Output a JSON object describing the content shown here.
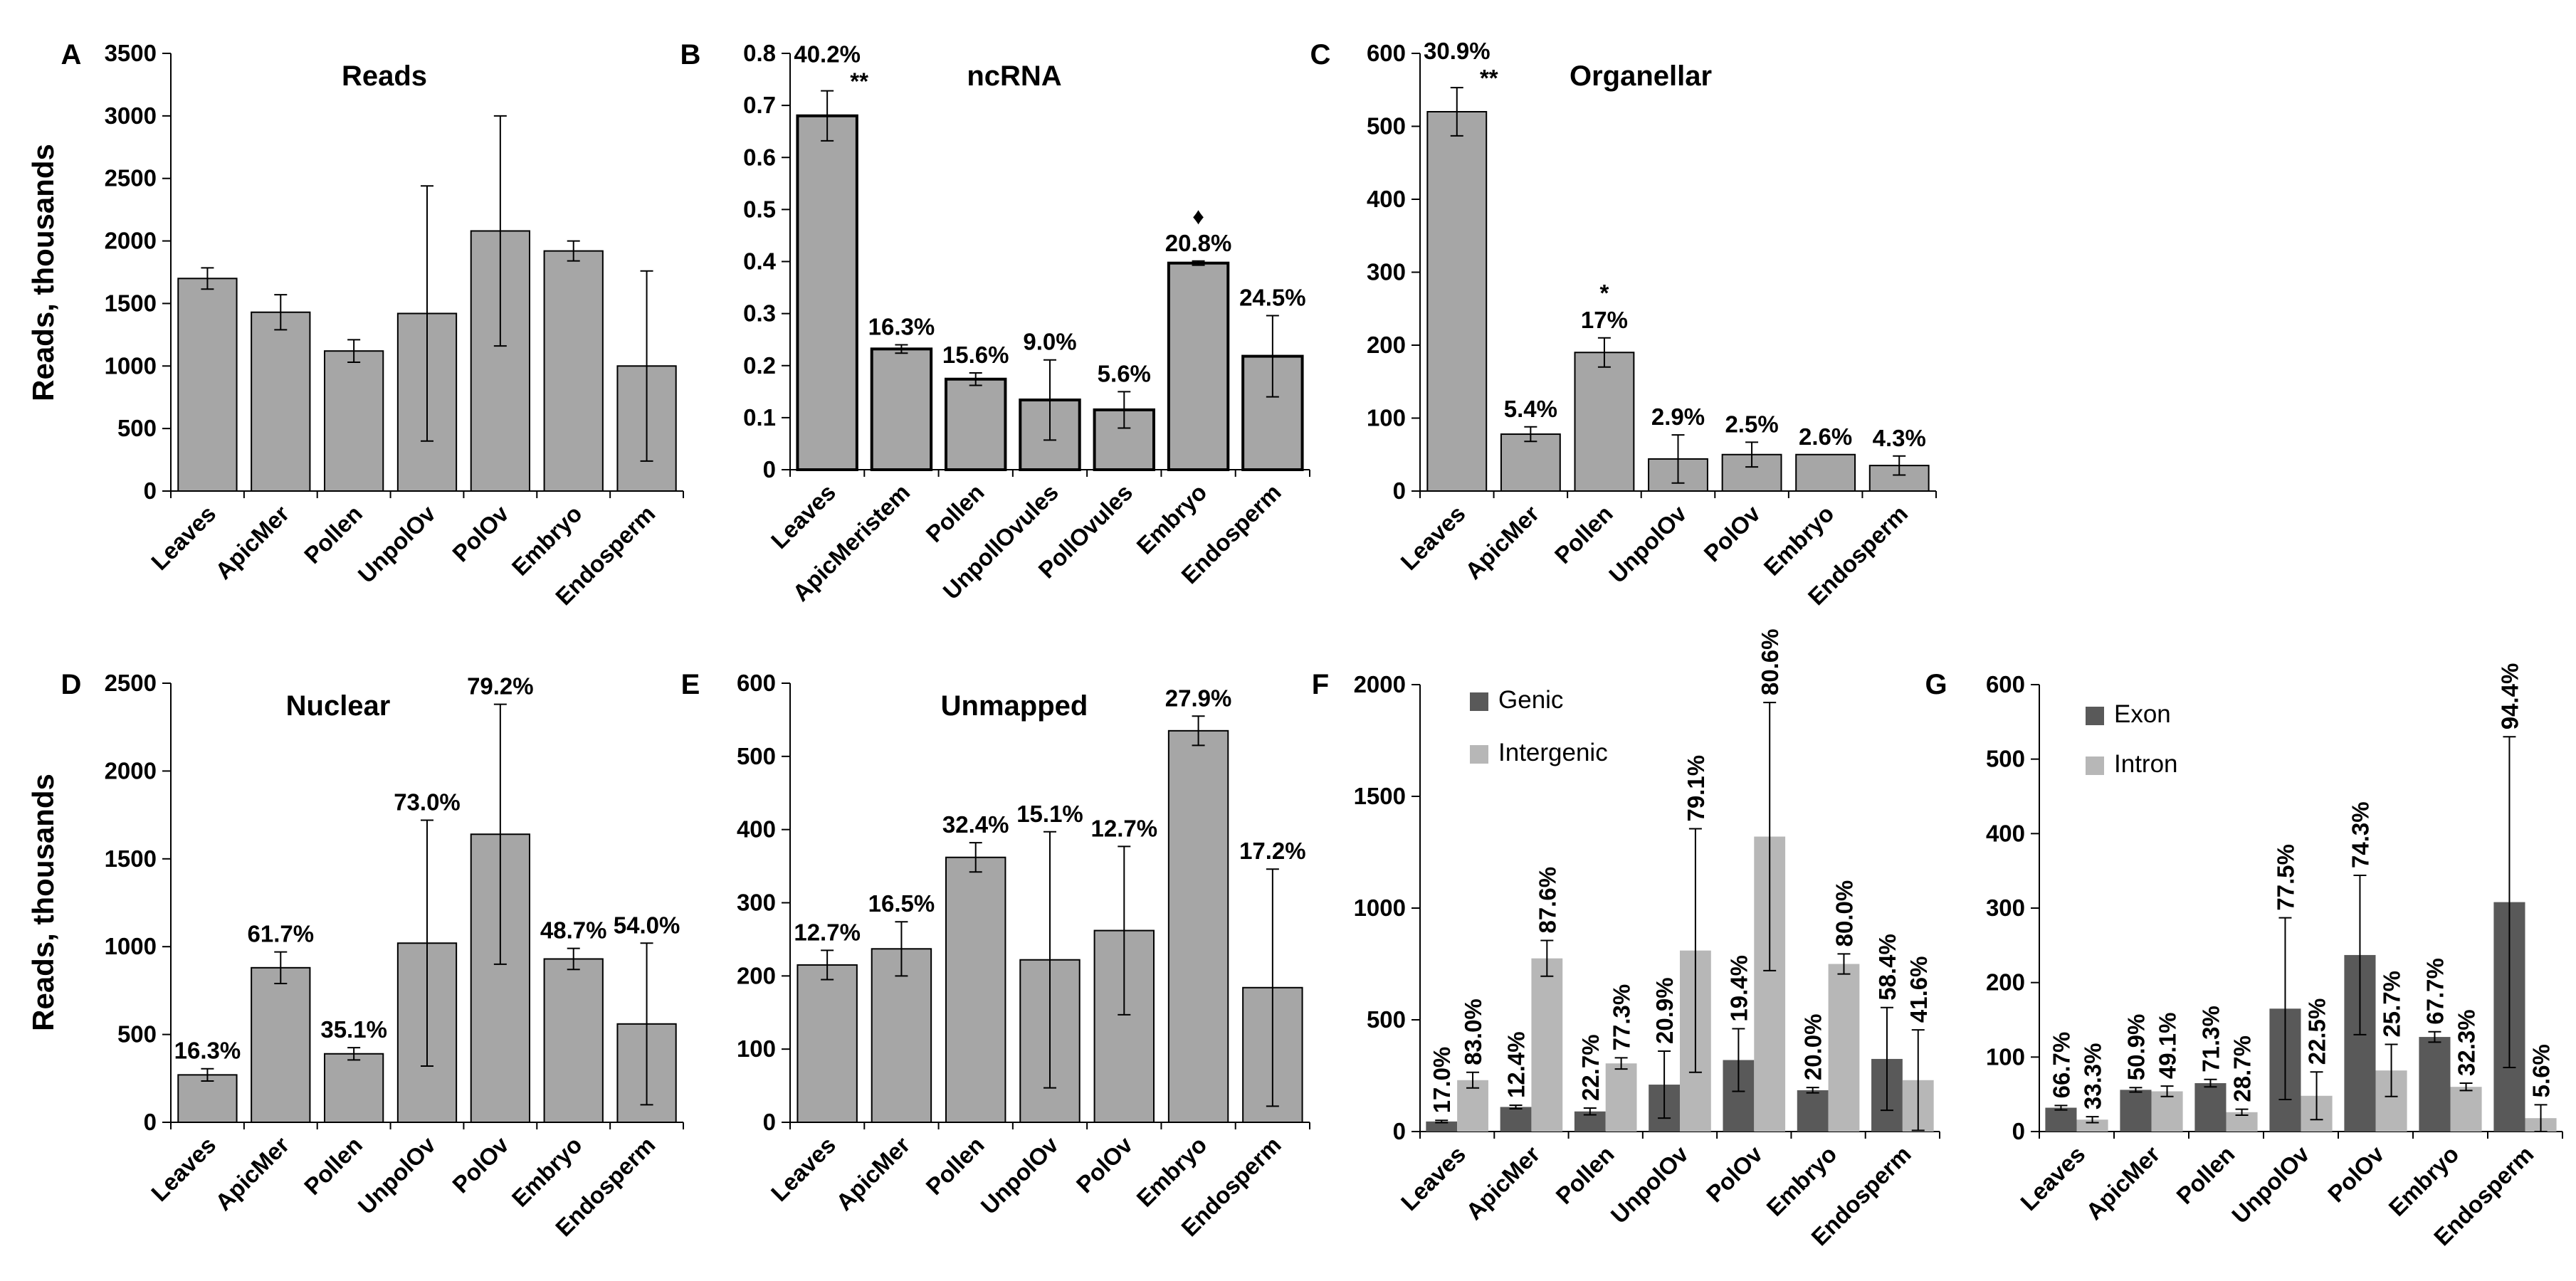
{
  "chart_data": [
    {
      "id": "A",
      "type": "bar",
      "title": "Reads",
      "panel_label": "A",
      "ylabel": "Reads, thousands",
      "categories": [
        "Leaves",
        "ApicMer",
        "Pollen",
        "UnpolOv",
        "PolOv",
        "Embryo",
        "Endosperm"
      ],
      "ylim": [
        0,
        3500
      ],
      "yticks": [
        0,
        500,
        1000,
        1500,
        2000,
        2500,
        3000,
        3500
      ],
      "series": [
        {
          "values": [
            1700,
            1430,
            1120,
            1420,
            2080,
            1920,
            1000
          ],
          "errors": [
            85,
            140,
            90,
            1020,
            920,
            80,
            760
          ],
          "color": "#a6a6a6"
        }
      ],
      "data_labels": [],
      "marks": []
    },
    {
      "id": "B",
      "type": "bar",
      "title": "ncRNA",
      "panel_label": "B",
      "ylabel": "",
      "categories": [
        "Leaves",
        "ApicMeristem",
        "Pollen",
        "UnpollOvules",
        "PollOvules",
        "Embryo",
        "Endosperm"
      ],
      "ylim": [
        0,
        0.8
      ],
      "yticks": [
        "0",
        "0.1",
        "0.2",
        "0.3",
        "0.4",
        "0.5",
        "0.6",
        "0.7",
        "0.8"
      ],
      "series": [
        {
          "values": [
            0.68,
            0.232,
            0.174,
            0.134,
            0.115,
            0.397,
            0.218
          ],
          "errors": [
            0.048,
            0.008,
            0.012,
            0.077,
            0.035,
            0.004,
            0.078
          ],
          "color": "#a6a6a6"
        }
      ],
      "data_labels": [
        "40.2%",
        "16.3%",
        "15.6%",
        "9.0%",
        "5.6%",
        "20.8%",
        "24.5%"
      ],
      "marks": [
        "**",
        "",
        "",
        "",
        "",
        "♦",
        ""
      ]
    },
    {
      "id": "C",
      "type": "bar",
      "title": "Organellar",
      "panel_label": "C",
      "ylabel": "",
      "categories": [
        "Leaves",
        "ApicMer",
        "Pollen",
        "UnpolOv",
        "PolOv",
        "Embryo",
        "Endosperm"
      ],
      "ylim": [
        0,
        600
      ],
      "yticks": [
        0,
        100,
        200,
        300,
        400,
        500,
        600
      ],
      "series": [
        {
          "values": [
            520,
            78,
            190,
            44,
            50,
            50,
            35
          ],
          "errors": [
            33,
            10,
            20,
            33,
            17,
            0,
            13
          ],
          "color": "#a6a6a6"
        }
      ],
      "data_labels": [
        "30.9%",
        "5.4%",
        "17%",
        "2.9%",
        "2.5%",
        "2.6%",
        "4.3%"
      ],
      "marks": [
        "**",
        "",
        "*",
        "",
        "",
        "",
        ""
      ]
    },
    {
      "id": "D",
      "type": "bar",
      "title": "Nuclear",
      "panel_label": "D",
      "ylabel": "Reads, thousands",
      "categories": [
        "Leaves",
        "ApicMer",
        "Pollen",
        "UnpolOv",
        "PolOv",
        "Embryo",
        "Endosperm"
      ],
      "ylim": [
        0,
        2500
      ],
      "yticks": [
        0,
        500,
        1000,
        1500,
        2000,
        2500
      ],
      "series": [
        {
          "values": [
            270,
            880,
            390,
            1020,
            1640,
            930,
            560
          ],
          "errors": [
            35,
            90,
            35,
            700,
            740,
            60,
            460
          ],
          "color": "#a6a6a6"
        }
      ],
      "data_labels": [
        "16.3%",
        "61.7%",
        "35.1%",
        "73.0%",
        "79.2%",
        "48.7%",
        "54.0%"
      ],
      "marks": []
    },
    {
      "id": "E",
      "type": "bar",
      "title": "Unmapped",
      "panel_label": "E",
      "ylabel": "",
      "categories": [
        "Leaves",
        "ApicMer",
        "Pollen",
        "UnpolOv",
        "PolOv",
        "Embryo",
        "Endosperm"
      ],
      "ylim": [
        0,
        600
      ],
      "yticks": [
        0,
        100,
        200,
        300,
        400,
        500,
        600
      ],
      "series": [
        {
          "values": [
            215,
            237,
            362,
            222,
            262,
            535,
            184
          ],
          "errors": [
            20,
            37,
            20,
            175,
            115,
            20,
            162
          ],
          "color": "#a6a6a6"
        }
      ],
      "data_labels": [
        "12.7%",
        "16.5%",
        "32.4%",
        "15.1%",
        "12.7%",
        "27.9%",
        "17.2%"
      ],
      "marks": []
    },
    {
      "id": "F",
      "type": "bar",
      "title": "",
      "panel_label": "F",
      "ylabel": "",
      "categories": [
        "Leaves",
        "ApicMer",
        "Pollen",
        "UnpolOv",
        "PolOv",
        "Embryo",
        "Endosperm"
      ],
      "ylim": [
        0,
        2000
      ],
      "yticks": [
        0,
        500,
        1000,
        1500,
        2000
      ],
      "legend": "top-left",
      "series": [
        {
          "name": "Genic",
          "color": "#595959",
          "values": [
            45,
            110,
            90,
            210,
            320,
            185,
            325
          ],
          "errors": [
            5,
            8,
            15,
            150,
            140,
            12,
            230
          ],
          "labels": [
            "17.0%",
            "12.4%",
            "22.7%",
            "20.9%",
            "19.4%",
            "20.0%",
            "58.4%"
          ]
        },
        {
          "name": "Intergenic",
          "color": "#b7b7b7",
          "values": [
            230,
            775,
            305,
            810,
            1320,
            750,
            230
          ],
          "errors": [
            35,
            80,
            25,
            545,
            600,
            45,
            225
          ],
          "labels": [
            "83.0%",
            "87.6%",
            "77.3%",
            "79.1%",
            "80.6%",
            "80.0%",
            "41.6%"
          ]
        }
      ]
    },
    {
      "id": "G",
      "type": "bar",
      "title": "",
      "panel_label": "G",
      "ylabel": "",
      "categories": [
        "Leaves",
        "ApicMer",
        "Pollen",
        "UnpolOv",
        "PolOv",
        "Embryo",
        "Endosperm"
      ],
      "ylim": [
        0,
        600
      ],
      "yticks": [
        0,
        100,
        200,
        300,
        400,
        500,
        600
      ],
      "legend": "top-left",
      "series": [
        {
          "name": "Exon",
          "color": "#595959",
          "values": [
            32,
            56,
            65,
            165,
            237,
            127,
            308
          ],
          "errors": [
            3,
            3,
            5,
            122,
            107,
            7,
            222
          ],
          "labels": [
            "66.7%",
            "50.9%",
            "71.3%",
            "77.5%",
            "74.3%",
            "67.7%",
            "94.4%"
          ]
        },
        {
          "name": "Intron",
          "color": "#b7b7b7",
          "values": [
            16,
            54,
            26,
            48,
            82,
            60,
            18
          ],
          "errors": [
            4,
            7,
            4,
            32,
            35,
            5,
            18
          ],
          "labels": [
            "33.3%",
            "49.1%",
            "28.7%",
            "22.5%",
            "25.7%",
            "32.3%",
            "5.6%"
          ]
        }
      ]
    }
  ]
}
